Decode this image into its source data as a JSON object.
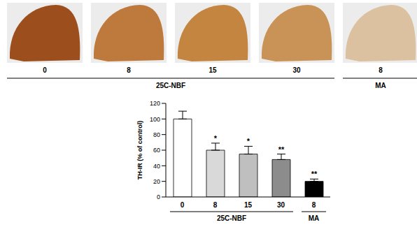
{
  "chart_data": {
    "type": "bar",
    "categories": [
      "0",
      "8",
      "15",
      "30",
      "8"
    ],
    "groups": [
      "25C-NBF",
      "25C-NBF",
      "25C-NBF",
      "25C-NBF",
      "MA"
    ],
    "values": [
      100,
      60,
      55,
      48,
      20
    ],
    "errors": [
      10,
      9,
      10,
      7,
      3
    ],
    "significance": [
      null,
      "*",
      "*",
      "**",
      "**"
    ],
    "colors": [
      "#ffffff",
      "#d9d9d9",
      "#bfbfbf",
      "#8c8c8c",
      "#000000"
    ],
    "y_label": "TH-IR (% of control)",
    "ylim": [
      0,
      120
    ],
    "yticks": [
      0,
      20,
      40,
      60,
      80,
      100,
      120
    ]
  }
}
